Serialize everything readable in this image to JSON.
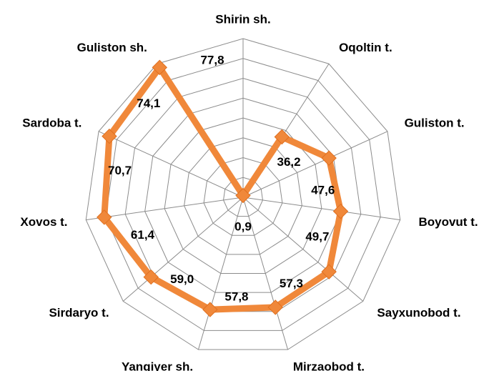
{
  "chart_data": {
    "type": "radar",
    "categories": [
      "Shirin sh.",
      "Oqoltin t.",
      "Guliston t.",
      "Boyovut t.",
      "Sayxunobod t.",
      "Mirzaobod t.",
      "Yangiyer sh.",
      "Sirdaryo t.",
      "Xovos t.",
      "Sardoba t.",
      "Guliston sh."
    ],
    "values": [
      0.9,
      36.2,
      47.6,
      49.7,
      57.3,
      57.8,
      59.0,
      61.4,
      70.7,
      74.1,
      77.8
    ],
    "value_labels": [
      "0,9",
      "36,2",
      "47,6",
      "49,7",
      "57,3",
      "57,8",
      "59,0",
      "61,4",
      "70,7",
      "74,1",
      "77,8"
    ],
    "color": "#f0883a",
    "ylim": [
      0,
      80
    ],
    "yticks": [
      0,
      10,
      20,
      30,
      40,
      50,
      60,
      70,
      80
    ],
    "grid": true
  }
}
